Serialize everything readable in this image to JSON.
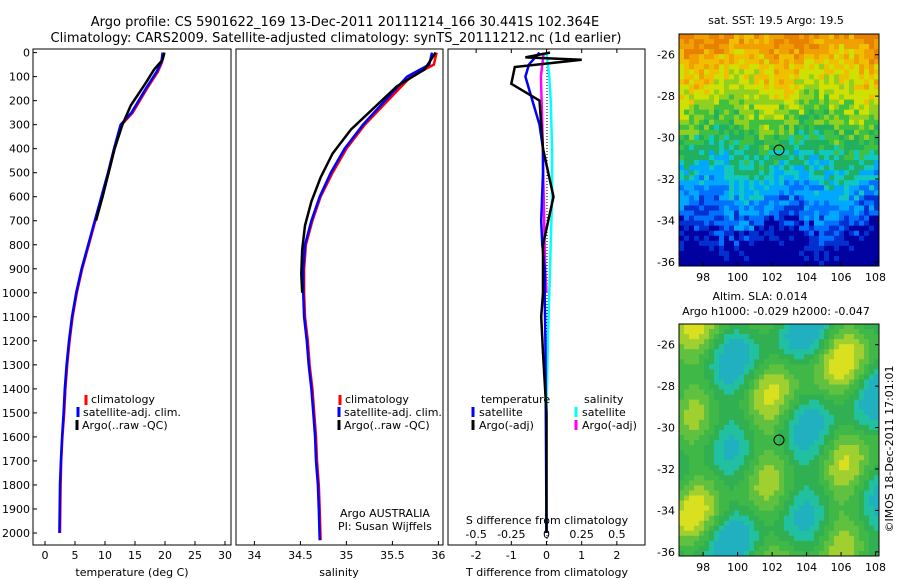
{
  "header": {
    "line1": "Argo profile: CS 5901622_169 13-Dec-2011 20111214_166 30.441S 102.364E",
    "line2": "Climatology: CARS2009. Satellite-adjusted climatology: synTS_20111212.nc (1d earlier)"
  },
  "colors": {
    "climatology": "#ff0000",
    "satellite": "#0000ff",
    "argo": "#000000",
    "sat_salinity": "#00ffff",
    "argo_salinity_adj": "#ff00ff"
  },
  "depth_axis": {
    "ticks": [
      "0",
      "100",
      "200",
      "300",
      "400",
      "500",
      "600",
      "700",
      "800",
      "900",
      "1000",
      "1100",
      "1200",
      "1300",
      "1400",
      "1500",
      "1600",
      "1700",
      "1800",
      "1900",
      "2000"
    ]
  },
  "temp_panel": {
    "xlabel": "temperature (deg C)",
    "xticks": [
      "0",
      "5",
      "10",
      "15",
      "20",
      "25",
      "30"
    ],
    "legend": [
      "climatology",
      "satellite-adj. clim.",
      "Argo(..raw -QC)"
    ]
  },
  "sal_panel": {
    "xlabel": "salinity",
    "xticks": [
      "34",
      "34.5",
      "35",
      "35.5",
      "36"
    ],
    "legend": [
      "climatology",
      "satellite-adj. clim.",
      "Argo(..raw -QC)"
    ],
    "credit1": "Argo AUSTRALIA",
    "credit2": "PI: Susan Wijffels"
  },
  "diff_panel": {
    "xlabel": "T difference from climatology",
    "top_label": "S difference from climatology",
    "xticks_t": [
      "-2",
      "-1",
      "0",
      "1",
      "2"
    ],
    "xticks_s": [
      "-0.5",
      "-0.25",
      "0",
      "0.25",
      "0.5"
    ],
    "legend_temp_title": "temperature",
    "legend_sal_title": "salinity",
    "legend_temp": [
      "satellite",
      "Argo(-adj)"
    ],
    "legend_sal": [
      "satellite",
      "Argo(-adj)"
    ]
  },
  "sst_map": {
    "title": "sat. SST: 19.5 Argo: 19.5",
    "yticks": [
      "-26",
      "-28",
      "-30",
      "-32",
      "-34",
      "-36"
    ],
    "xticks": [
      "98",
      "100",
      "102",
      "104",
      "106",
      "108"
    ]
  },
  "sla_map": {
    "title1": "Altim. SLA: 0.014",
    "title2": "Argo h1000: -0.029 h2000: -0.047",
    "yticks": [
      "-26",
      "-28",
      "-30",
      "-32",
      "-34",
      "-36"
    ],
    "xticks": [
      "98",
      "100",
      "102",
      "104",
      "106",
      "108"
    ]
  },
  "footer": {
    "stamp": "©IMOS 18-Dec-2011 17:01:01"
  },
  "chart_data": [
    {
      "type": "line",
      "xlabel": "temperature (deg C)",
      "ylabel": "",
      "xlim": [
        -2,
        31
      ],
      "ylim": [
        2050,
        0
      ],
      "series": [
        {
          "name": "climatology",
          "x": [
            19.7,
            19.5,
            18.8,
            17.0,
            14.6,
            12.8,
            11.6,
            10.6,
            9.5,
            8.4,
            7.3,
            6.2,
            5.3,
            4.6,
            4.1,
            3.7,
            3.4,
            3.2,
            2.9,
            2.7,
            2.6,
            2.5
          ],
          "y": [
            0,
            40,
            80,
            150,
            250,
            300,
            400,
            500,
            600,
            700,
            800,
            900,
            1000,
            1100,
            1200,
            1300,
            1400,
            1500,
            1600,
            1700,
            1800,
            2000
          ]
        },
        {
          "name": "satellite-adj. clim.",
          "x": [
            19.6,
            19.4,
            18.6,
            16.8,
            14.4,
            12.6,
            11.5,
            10.5,
            9.4,
            8.3,
            7.2,
            6.1,
            5.2,
            4.5,
            4.0,
            3.6,
            3.3,
            3.1,
            2.85,
            2.65,
            2.5,
            2.4
          ],
          "y": [
            0,
            40,
            80,
            150,
            250,
            300,
            400,
            500,
            600,
            700,
            800,
            900,
            1000,
            1100,
            1200,
            1300,
            1400,
            1500,
            1600,
            1700,
            1800,
            2000
          ]
        },
        {
          "name": "Argo(..raw -QC)",
          "x": [
            19.9,
            19.6,
            18.2,
            16.7,
            14.3,
            12.9,
            11.6,
            10.6,
            9.6,
            8.5
          ],
          "y": [
            0,
            30,
            70,
            130,
            220,
            300,
            400,
            500,
            600,
            700
          ]
        }
      ]
    },
    {
      "type": "line",
      "xlabel": "salinity",
      "ylabel": "",
      "xlim": [
        33.8,
        36.05
      ],
      "ylim": [
        2050,
        0
      ],
      "series": [
        {
          "name": "climatology",
          "x": [
            35.98,
            35.95,
            35.7,
            35.45,
            35.2,
            35.0,
            34.85,
            34.72,
            34.63,
            34.56,
            34.54,
            34.54,
            34.55,
            34.58,
            34.6,
            34.63,
            34.65,
            34.67,
            34.68,
            34.7,
            34.71,
            34.72
          ],
          "y": [
            0,
            50,
            100,
            200,
            300,
            400,
            500,
            600,
            700,
            800,
            900,
            1000,
            1100,
            1200,
            1300,
            1400,
            1500,
            1600,
            1700,
            1800,
            1900,
            2030
          ]
        },
        {
          "name": "satellite-adj. clim.",
          "x": [
            35.93,
            35.9,
            35.66,
            35.42,
            35.18,
            34.98,
            34.83,
            34.71,
            34.62,
            34.55,
            34.53,
            34.53,
            34.54,
            34.57,
            34.59,
            34.62,
            34.64,
            34.66,
            34.67,
            34.69,
            34.7,
            34.71
          ],
          "y": [
            0,
            50,
            100,
            200,
            300,
            400,
            500,
            600,
            700,
            800,
            900,
            1000,
            1100,
            1200,
            1300,
            1400,
            1500,
            1600,
            1700,
            1800,
            1900,
            2030
          ]
        },
        {
          "name": "Argo(..raw -QC)",
          "x": [
            35.97,
            35.85,
            35.55,
            35.3,
            35.05,
            34.85,
            34.72,
            34.62,
            34.55,
            34.52,
            34.51,
            34.52
          ],
          "y": [
            0,
            70,
            140,
            230,
            320,
            420,
            520,
            620,
            720,
            820,
            920,
            1000
          ]
        }
      ]
    },
    {
      "type": "line",
      "xlabel": "T difference from climatology",
      "ylabel": "",
      "xlim": [
        -2.8,
        2.8
      ],
      "ylim": [
        2050,
        0
      ],
      "series": [
        {
          "name": "satellite",
          "x": [
            -0.2,
            -0.5,
            -0.6,
            -0.4,
            -0.2,
            -0.1,
            -0.1,
            -0.15,
            -0.12,
            -0.05,
            -0.05,
            -0.03,
            -0.02,
            0.0
          ],
          "y": [
            0,
            50,
            100,
            200,
            300,
            400,
            500,
            700,
            800,
            900,
            1000,
            1200,
            1500,
            2000
          ]
        },
        {
          "name": "Argo(-adj)",
          "x": [
            0.1,
            -0.6,
            1.0,
            -0.9,
            -1.0,
            -0.2,
            -0.1,
            0.2,
            -0.1,
            -0.1,
            -0.15,
            -0.1,
            0.0,
            0.0
          ],
          "y": [
            0,
            20,
            30,
            60,
            130,
            200,
            400,
            600,
            800,
            1000,
            1100,
            1250,
            1500,
            2000
          ]
        }
      ]
    },
    {
      "type": "line",
      "xlabel": "S difference from climatology",
      "ylabel": "",
      "xlim": [
        -0.7,
        0.7
      ],
      "ylim": [
        2050,
        0
      ],
      "series": [
        {
          "name": "satellite",
          "x": [
            0.0,
            0.02,
            0.03,
            0.04,
            0.04,
            0.03,
            0.02,
            0.01,
            0.0,
            0.0
          ],
          "y": [
            0,
            100,
            200,
            400,
            600,
            800,
            1000,
            1200,
            1500,
            2000
          ]
        },
        {
          "name": "Argo(-adj)",
          "x": [
            -0.02,
            -0.04,
            -0.03,
            -0.02,
            -0.01,
            0.0
          ],
          "y": [
            0,
            100,
            300,
            600,
            900,
            1000
          ]
        }
      ]
    }
  ]
}
